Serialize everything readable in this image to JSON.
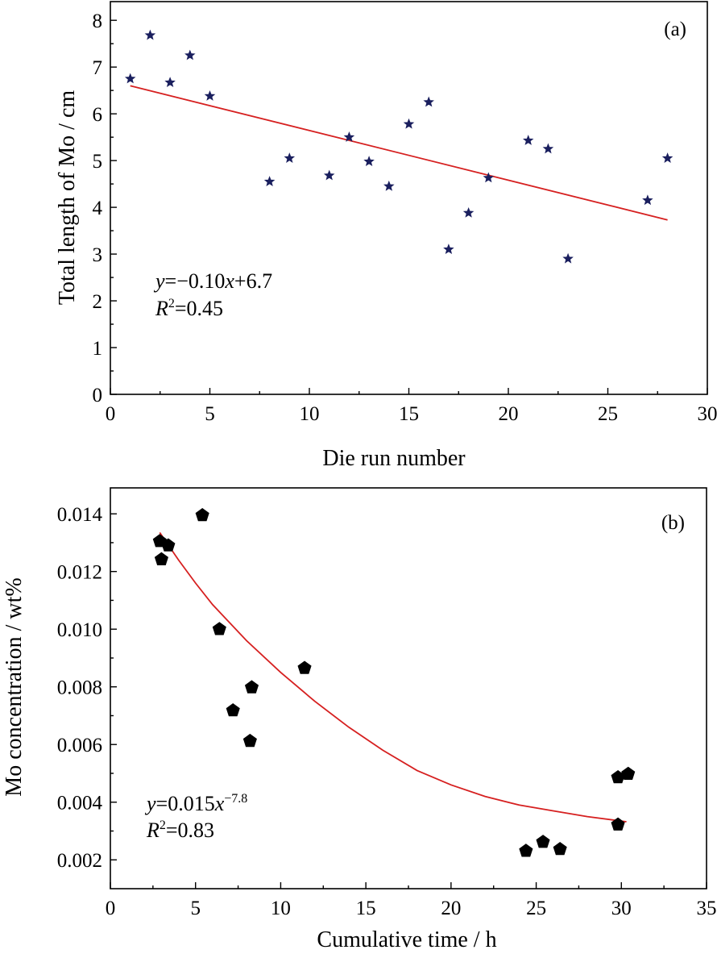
{
  "chart_data": [
    {
      "type": "scatter",
      "panel": "(a)",
      "xlabel": "Die run number",
      "ylabel": "Total length of Mo / cm",
      "xlim": [
        0,
        30
      ],
      "ylim": [
        0,
        8
      ],
      "xticks": [
        "0",
        "5",
        "10",
        "15",
        "20",
        "25",
        "30"
      ],
      "yticks": [
        "0",
        "1",
        "2",
        "3",
        "4",
        "5",
        "6",
        "7",
        "8"
      ],
      "marker": "star",
      "marker_color": "#1a1f5e",
      "fit_color": "#d62020",
      "points": [
        {
          "x": 1,
          "y": 6.75
        },
        {
          "x": 2,
          "y": 7.68
        },
        {
          "x": 3,
          "y": 6.67
        },
        {
          "x": 4,
          "y": 7.25
        },
        {
          "x": 5,
          "y": 6.38
        },
        {
          "x": 8,
          "y": 4.55
        },
        {
          "x": 9,
          "y": 5.05
        },
        {
          "x": 11,
          "y": 4.68
        },
        {
          "x": 12,
          "y": 5.5
        },
        {
          "x": 13,
          "y": 4.98
        },
        {
          "x": 14,
          "y": 4.45
        },
        {
          "x": 15,
          "y": 5.78
        },
        {
          "x": 16,
          "y": 6.25
        },
        {
          "x": 17,
          "y": 3.1
        },
        {
          "x": 18,
          "y": 3.88
        },
        {
          "x": 19,
          "y": 4.63
        },
        {
          "x": 21,
          "y": 5.43
        },
        {
          "x": 22,
          "y": 5.25
        },
        {
          "x": 23,
          "y": 2.9
        },
        {
          "x": 27,
          "y": 4.15
        },
        {
          "x": 28,
          "y": 5.05
        }
      ],
      "fit_line": {
        "x": [
          1,
          28
        ],
        "y": [
          6.6,
          3.73
        ]
      },
      "annotation": {
        "equation": "y=−0.10x+6.7",
        "r2": "R2=0.45"
      },
      "grid": false,
      "legend": "none"
    },
    {
      "type": "scatter",
      "panel": "(b)",
      "xlabel": "Cumulative time / h",
      "ylabel": "Mo concentration / wt%",
      "xlim": [
        0,
        35
      ],
      "ylim": [
        0.001,
        0.015
      ],
      "xticks": [
        "0",
        "5",
        "10",
        "15",
        "20",
        "25",
        "30",
        "35"
      ],
      "yticks": [
        "0.002",
        "0.004",
        "0.006",
        "0.008",
        "0.010",
        "0.012",
        "0.014"
      ],
      "marker": "pentagon",
      "marker_color": "#000000",
      "fit_color": "#d62020",
      "points": [
        {
          "x": 2.9,
          "y": 0.01305
        },
        {
          "x": 3.0,
          "y": 0.01242
        },
        {
          "x": 3.4,
          "y": 0.0129
        },
        {
          "x": 5.4,
          "y": 0.01395
        },
        {
          "x": 6.4,
          "y": 0.01
        },
        {
          "x": 7.2,
          "y": 0.00718
        },
        {
          "x": 8.2,
          "y": 0.00612
        },
        {
          "x": 8.3,
          "y": 0.00798
        },
        {
          "x": 11.4,
          "y": 0.00865
        },
        {
          "x": 24.4,
          "y": 0.00231
        },
        {
          "x": 25.4,
          "y": 0.00262
        },
        {
          "x": 26.4,
          "y": 0.00237
        },
        {
          "x": 29.8,
          "y": 0.00322
        },
        {
          "x": 29.8,
          "y": 0.00486
        },
        {
          "x": 30.4,
          "y": 0.00498
        }
      ],
      "fit_curve": {
        "x": [
          2.9,
          4,
          5,
          6,
          8,
          10,
          12,
          14,
          16,
          18,
          20,
          22,
          24,
          26,
          28,
          30.3
        ],
        "y": [
          0.01335,
          0.0124,
          0.0116,
          0.01085,
          0.0096,
          0.0085,
          0.0075,
          0.0066,
          0.0058,
          0.0051,
          0.0046,
          0.0042,
          0.0039,
          0.0037,
          0.0035,
          0.00332
        ]
      },
      "annotation": {
        "equation": "y=0.015x−7.8",
        "r2": "R2=0.83"
      },
      "grid": false,
      "legend": "none"
    }
  ],
  "labels": {
    "a": {
      "panel": "(a)",
      "xlabel": "Die run number",
      "ylabel": "Total length of Mo / cm",
      "eq_y": "y",
      "eq_mid": "=−0.10",
      "eq_x": "x",
      "eq_end": "+6.7",
      "r2_R": "R",
      "r2_sup": "2",
      "r2_val": "=0.45"
    },
    "b": {
      "panel": "(b)",
      "xlabel": "Cumulative time / h",
      "ylabel": "Mo concentration / wt%",
      "eq_y": "y",
      "eq_mid": "=0.015",
      "eq_x": "x",
      "eq_sup": "−7.8",
      "r2_R": "R",
      "r2_sup": "2",
      "r2_val": "=0.83"
    }
  }
}
